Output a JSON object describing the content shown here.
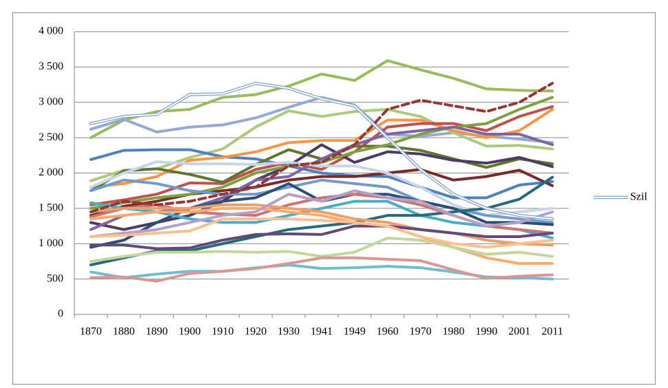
{
  "chart_data": {
    "type": "line",
    "categories": [
      "1870",
      "1880",
      "1890",
      "1900",
      "1910",
      "1920",
      "1930",
      "1941",
      "1949",
      "1960",
      "1970",
      "1980",
      "1990",
      "2001",
      "2011"
    ],
    "ylim": [
      0,
      4000
    ],
    "yticks": [
      0,
      500,
      {
        "value": 1000,
        "label": "1 000"
      },
      {
        "value": 1500,
        "label": "1 500"
      },
      {
        "value": 2000,
        "label": "2 000"
      },
      {
        "value": 2500,
        "label": "2 500"
      },
      {
        "value": 3000,
        "label": "3 000"
      },
      {
        "value": 3500,
        "label": "3 500"
      },
      {
        "value": 4000,
        "label": "4 000"
      }
    ],
    "grid": true,
    "legend": "right",
    "series": [
      {
        "color": "#9BBB59",
        "values": [
          2500,
          2750,
          2870,
          2900,
          3070,
          3110,
          3230,
          3400,
          3310,
          3590,
          3460,
          3340,
          3190,
          3170,
          3160
        ]
      },
      {
        "color": "#95A9D3",
        "values": [
          2620,
          2760,
          2580,
          2650,
          2680,
          2780,
          2930,
          3070,
          2960,
          2550,
          2520,
          2570,
          2520,
          2480,
          2430
        ]
      },
      {
        "color": "#AFC97A",
        "values": [
          1890,
          2040,
          2060,
          2220,
          2340,
          2650,
          2880,
          2800,
          2870,
          2900,
          2800,
          2570,
          2380,
          2390,
          2340
        ]
      },
      {
        "color": "#4F81BD",
        "values": [
          2190,
          2320,
          2330,
          2330,
          2230,
          2200,
          2100,
          2000,
          1960,
          1950,
          1800,
          1650,
          1650,
          1830,
          1880
        ]
      },
      {
        "color": "#F79646",
        "values": [
          1800,
          1850,
          1950,
          2180,
          2220,
          2300,
          2430,
          2460,
          2460,
          2750,
          2750,
          2600,
          2500,
          2600,
          2900
        ]
      },
      {
        "color": "#C0504D",
        "values": [
          1550,
          1620,
          1700,
          1860,
          1850,
          2050,
          2150,
          2050,
          2300,
          2650,
          2700,
          2700,
          2600,
          2800,
          2940
        ]
      },
      {
        "color": "#5F7530",
        "values": [
          1750,
          2030,
          2060,
          1980,
          1870,
          2120,
          2330,
          2200,
          2380,
          2380,
          2320,
          2200,
          2080,
          2200,
          2130
        ]
      },
      {
        "color": "#4D3B62",
        "values": [
          1300,
          1200,
          1300,
          1400,
          1600,
          1900,
          2100,
          2400,
          2150,
          2300,
          2270,
          2180,
          2140,
          2220,
          2090
        ]
      },
      {
        "color": "#772C2A",
        "values": [
          1400,
          1530,
          1600,
          1700,
          1750,
          1800,
          1900,
          1950,
          1950,
          2000,
          2050,
          1900,
          1950,
          2040,
          1820
        ]
      },
      {
        "color": "#7FA03F",
        "values": [
          1500,
          1580,
          1650,
          1700,
          1800,
          2000,
          2100,
          2150,
          2300,
          2400,
          2550,
          2650,
          2700,
          2900,
          3070
        ]
      },
      {
        "color": "#8064A2",
        "values": [
          1200,
          1400,
          1450,
          1500,
          1650,
          1900,
          1950,
          2200,
          2400,
          2550,
          2600,
          2650,
          2550,
          2550,
          2400
        ]
      },
      {
        "color": "#C6D5EA",
        "values": [
          1800,
          2000,
          2160,
          2130,
          2130,
          2120,
          2150,
          2100,
          2100,
          2000,
          1800,
          1550,
          1400,
          1450,
          1500
        ]
      },
      {
        "color": "#729ACA",
        "values": [
          1750,
          1900,
          1850,
          1750,
          1700,
          1700,
          1800,
          1900,
          1850,
          1800,
          1600,
          1500,
          1400,
          1350,
          1300
        ]
      },
      {
        "color": "#2C4D75",
        "values": [
          950,
          1050,
          1300,
          1500,
          1600,
          1650,
          1850,
          1600,
          1700,
          1700,
          1600,
          1500,
          1300,
          1300,
          1270
        ]
      },
      {
        "color": "#4BACC6",
        "values": [
          1580,
          1500,
          1450,
          1350,
          1300,
          1300,
          1400,
          1500,
          1600,
          1600,
          1400,
          1300,
          1250,
          1200,
          1080
        ]
      },
      {
        "color": "#276A7C",
        "values": [
          700,
          800,
          900,
          900,
          1000,
          1100,
          1200,
          1250,
          1300,
          1400,
          1400,
          1450,
          1500,
          1630,
          1940
        ]
      },
      {
        "color": "#CD7371",
        "values": [
          1380,
          1500,
          1550,
          1450,
          1420,
          1400,
          1550,
          1650,
          1700,
          1650,
          1550,
          1400,
          1250,
          1200,
          1150
        ]
      },
      {
        "color": "#F9AB6B",
        "values": [
          1350,
          1400,
          1450,
          1450,
          1500,
          1500,
          1450,
          1400,
          1300,
          1250,
          1100,
          950,
          800,
          720,
          720
        ]
      },
      {
        "color": "#E9A06A",
        "values": [
          1450,
          1500,
          1500,
          1500,
          1550,
          1550,
          1500,
          1450,
          1350,
          1300,
          1200,
          1150,
          1050,
          1000,
          980
        ]
      },
      {
        "color": "#604A7B",
        "values": [
          980,
          980,
          930,
          940,
          1050,
          1130,
          1140,
          1130,
          1250,
          1250,
          1200,
          1150,
          1100,
          1100,
          1150
        ]
      },
      {
        "color": "#C4D79B",
        "values": [
          750,
          820,
          880,
          880,
          890,
          880,
          890,
          820,
          880,
          1080,
          1050,
          950,
          850,
          880,
          820
        ]
      },
      {
        "color": "#6FBDD1",
        "values": [
          600,
          520,
          570,
          610,
          610,
          660,
          700,
          650,
          660,
          680,
          660,
          600,
          530,
          520,
          500
        ]
      },
      {
        "color": "#D99694",
        "values": [
          520,
          530,
          470,
          580,
          610,
          650,
          720,
          800,
          800,
          780,
          760,
          630,
          510,
          540,
          560
        ]
      },
      {
        "color": "#B3A2C7",
        "values": [
          1100,
          1150,
          1200,
          1300,
          1400,
          1450,
          1700,
          1600,
          1750,
          1650,
          1600,
          1400,
          1250,
          1300,
          1450
        ]
      },
      {
        "color": "#FAC090",
        "values": [
          1100,
          1120,
          1150,
          1180,
          1350,
          1350,
          1350,
          1330,
          1300,
          1250,
          1100,
          1000,
          950,
          1000,
          1050
        ]
      },
      {
        "color": "#953735",
        "line_style": "dashed",
        "values": [
          1450,
          1600,
          1550,
          1600,
          1700,
          1800,
          2100,
          2150,
          2400,
          2900,
          3030,
          2950,
          2870,
          3000,
          3270
        ]
      },
      {
        "name": "Szil",
        "color": "#7FA1C8",
        "line_style": "double",
        "values": [
          2700,
          2800,
          2830,
          3110,
          3120,
          3270,
          3200,
          3050,
          2950,
          2500,
          2050,
          1700,
          1500,
          1400,
          1350
        ]
      }
    ]
  }
}
